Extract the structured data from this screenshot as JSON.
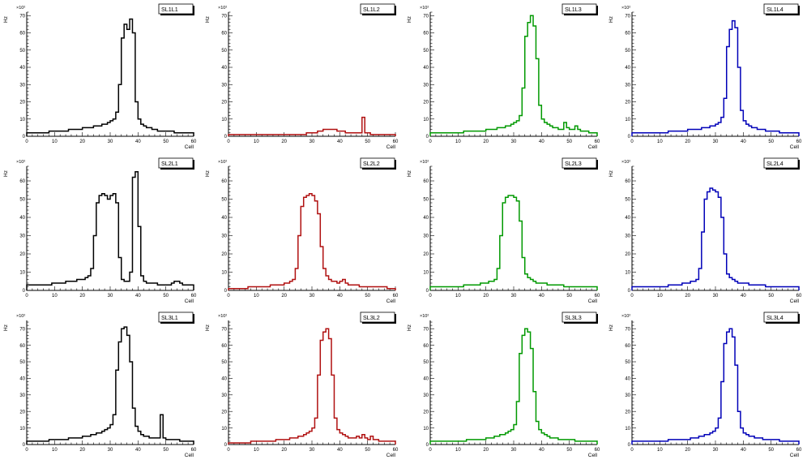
{
  "page": {
    "background": "#ffffff"
  },
  "chart_data": {
    "type": "bar",
    "subtype": "step-histogram",
    "layout": {
      "rows": 3,
      "cols": 4,
      "legend": "none",
      "grid": false
    },
    "xlabel": "Cell",
    "ylabel": "Hz",
    "y_exponent": "×10²",
    "xlim": [
      0,
      60
    ],
    "bins": 60,
    "xtick_step": 10,
    "ytick_step": 10,
    "panels": [
      {
        "title": "SL1L1",
        "color": "#000000",
        "ylim": [
          0,
          72
        ],
        "values": [
          2,
          2,
          2,
          2,
          2,
          2,
          2,
          2,
          3,
          3,
          3,
          3,
          3,
          3,
          3,
          4,
          4,
          4,
          4,
          4,
          5,
          5,
          5,
          5,
          6,
          6,
          6,
          7,
          7,
          8,
          9,
          10,
          14,
          30,
          57,
          65,
          62,
          68,
          60,
          20,
          10,
          7,
          6,
          5,
          5,
          4,
          4,
          3,
          3,
          3,
          3,
          3,
          3,
          2,
          2,
          2,
          2,
          2,
          2,
          2
        ]
      },
      {
        "title": "SL1L2",
        "color": "#b01010",
        "ylim": [
          0,
          72
        ],
        "values": [
          1,
          1,
          1,
          1,
          1,
          1,
          1,
          1,
          1,
          1,
          1,
          1,
          1,
          1,
          1,
          1,
          1,
          1,
          1,
          1,
          1,
          1,
          1,
          1,
          1,
          1,
          1,
          1,
          2,
          2,
          2,
          2,
          3,
          3,
          4,
          4,
          4,
          4,
          4,
          3,
          3,
          3,
          2,
          2,
          2,
          2,
          2,
          2,
          11,
          2,
          2,
          1,
          1,
          1,
          1,
          1,
          1,
          1,
          1,
          1
        ]
      },
      {
        "title": "SL1L3",
        "color": "#009900",
        "ylim": [
          0,
          72
        ],
        "values": [
          2,
          2,
          2,
          2,
          2,
          2,
          2,
          2,
          2,
          2,
          2,
          2,
          3,
          3,
          3,
          3,
          3,
          3,
          3,
          3,
          4,
          4,
          4,
          4,
          5,
          5,
          5,
          6,
          6,
          7,
          8,
          9,
          12,
          28,
          58,
          66,
          70,
          64,
          45,
          18,
          10,
          8,
          7,
          6,
          5,
          5,
          4,
          4,
          8,
          5,
          4,
          4,
          6,
          4,
          3,
          3,
          3,
          2,
          2,
          2
        ]
      },
      {
        "title": "SL1L4",
        "color": "#0000b8",
        "ylim": [
          0,
          72
        ],
        "values": [
          2,
          2,
          2,
          2,
          2,
          2,
          2,
          2,
          2,
          2,
          2,
          2,
          2,
          3,
          3,
          3,
          3,
          3,
          3,
          3,
          4,
          4,
          4,
          4,
          4,
          5,
          5,
          5,
          6,
          6,
          7,
          8,
          11,
          22,
          52,
          62,
          67,
          63,
          40,
          15,
          9,
          7,
          6,
          5,
          5,
          4,
          4,
          4,
          3,
          3,
          3,
          3,
          3,
          2,
          2,
          2,
          2,
          2,
          2,
          2
        ]
      },
      {
        "title": "SL2L1",
        "color": "#000000",
        "ylim": [
          0,
          68
        ],
        "values": [
          3,
          3,
          3,
          3,
          3,
          3,
          3,
          3,
          3,
          4,
          4,
          4,
          4,
          4,
          5,
          5,
          5,
          5,
          6,
          6,
          6,
          7,
          8,
          12,
          30,
          48,
          52,
          53,
          52,
          50,
          52,
          53,
          48,
          18,
          6,
          5,
          5,
          10,
          62,
          65,
          35,
          8,
          5,
          4,
          4,
          4,
          4,
          3,
          3,
          3,
          3,
          3,
          4,
          5,
          5,
          4,
          3,
          3,
          3,
          3
        ]
      },
      {
        "title": "SL2L2",
        "color": "#b01010",
        "ylim": [
          0,
          68
        ],
        "values": [
          1,
          1,
          1,
          1,
          1,
          1,
          1,
          2,
          2,
          2,
          2,
          2,
          2,
          2,
          2,
          3,
          3,
          3,
          3,
          3,
          4,
          4,
          5,
          6,
          12,
          30,
          46,
          51,
          52,
          53,
          52,
          49,
          42,
          24,
          12,
          8,
          6,
          5,
          5,
          4,
          5,
          6,
          4,
          3,
          3,
          3,
          3,
          2,
          2,
          2,
          2,
          2,
          2,
          2,
          2,
          2,
          2,
          1,
          1,
          1
        ]
      },
      {
        "title": "SL2L3",
        "color": "#009900",
        "ylim": [
          0,
          68
        ],
        "values": [
          2,
          2,
          2,
          2,
          2,
          2,
          2,
          2,
          2,
          2,
          2,
          2,
          3,
          3,
          3,
          3,
          3,
          3,
          4,
          4,
          4,
          5,
          5,
          6,
          12,
          30,
          48,
          51,
          52,
          52,
          51,
          49,
          38,
          18,
          9,
          7,
          6,
          5,
          4,
          4,
          4,
          4,
          3,
          3,
          3,
          3,
          3,
          3,
          2,
          2,
          2,
          2,
          2,
          2,
          2,
          2,
          2,
          2,
          2,
          2
        ]
      },
      {
        "title": "SL2L4",
        "color": "#0000b8",
        "ylim": [
          0,
          68
        ],
        "values": [
          2,
          2,
          2,
          2,
          2,
          2,
          2,
          2,
          2,
          2,
          2,
          2,
          2,
          3,
          3,
          3,
          3,
          3,
          4,
          4,
          4,
          5,
          5,
          6,
          12,
          32,
          50,
          54,
          56,
          55,
          54,
          51,
          40,
          20,
          9,
          7,
          6,
          5,
          4,
          4,
          4,
          4,
          3,
          3,
          3,
          3,
          3,
          3,
          2,
          2,
          2,
          2,
          2,
          2,
          2,
          2,
          2,
          2,
          2,
          2
        ]
      },
      {
        "title": "SL3L1",
        "color": "#000000",
        "ylim": [
          0,
          75
        ],
        "values": [
          2,
          2,
          2,
          2,
          2,
          2,
          2,
          2,
          3,
          3,
          3,
          3,
          3,
          3,
          3,
          4,
          4,
          4,
          4,
          4,
          5,
          5,
          5,
          6,
          6,
          7,
          7,
          8,
          9,
          10,
          12,
          18,
          45,
          62,
          70,
          71,
          66,
          50,
          22,
          11,
          8,
          6,
          5,
          5,
          4,
          4,
          4,
          4,
          18,
          4,
          3,
          3,
          3,
          3,
          3,
          2,
          2,
          2,
          2,
          2
        ]
      },
      {
        "title": "SL3L2",
        "color": "#b01010",
        "ylim": [
          0,
          75
        ],
        "values": [
          1,
          1,
          1,
          1,
          1,
          1,
          1,
          1,
          2,
          2,
          2,
          2,
          2,
          2,
          2,
          2,
          2,
          3,
          3,
          3,
          3,
          3,
          4,
          4,
          4,
          5,
          5,
          6,
          7,
          8,
          10,
          16,
          42,
          63,
          68,
          70,
          64,
          42,
          16,
          9,
          7,
          6,
          5,
          4,
          4,
          4,
          5,
          4,
          6,
          4,
          3,
          5,
          3,
          3,
          2,
          2,
          2,
          2,
          2,
          2
        ]
      },
      {
        "title": "SL3L3",
        "color": "#009900",
        "ylim": [
          0,
          75
        ],
        "values": [
          2,
          2,
          2,
          2,
          2,
          2,
          2,
          2,
          2,
          2,
          2,
          2,
          2,
          3,
          3,
          3,
          3,
          3,
          3,
          3,
          4,
          4,
          4,
          5,
          5,
          6,
          6,
          7,
          8,
          9,
          12,
          26,
          55,
          66,
          70,
          68,
          58,
          32,
          14,
          9,
          7,
          6,
          5,
          4,
          4,
          4,
          3,
          3,
          3,
          3,
          3,
          3,
          2,
          2,
          2,
          2,
          2,
          2,
          2,
          2
        ]
      },
      {
        "title": "SL3L4",
        "color": "#0000b8",
        "ylim": [
          0,
          75
        ],
        "values": [
          2,
          2,
          2,
          2,
          2,
          2,
          2,
          2,
          2,
          2,
          2,
          2,
          2,
          3,
          3,
          3,
          3,
          3,
          3,
          3,
          3,
          4,
          4,
          4,
          5,
          5,
          6,
          6,
          7,
          8,
          10,
          16,
          38,
          61,
          68,
          70,
          65,
          48,
          20,
          10,
          7,
          6,
          5,
          5,
          4,
          4,
          4,
          3,
          3,
          3,
          3,
          3,
          3,
          2,
          2,
          2,
          2,
          2,
          2,
          2
        ]
      }
    ]
  }
}
